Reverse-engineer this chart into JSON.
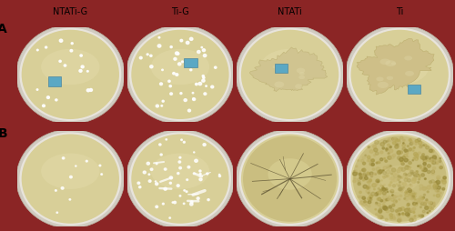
{
  "col_labels": [
    "NTATi-G",
    "Ti-G",
    "NTATi",
    "Ti"
  ],
  "row_labels": [
    "A",
    "B"
  ],
  "background_color": "#8B2525",
  "figsize": [
    5.0,
    2.55
  ],
  "dpi": 100,
  "title_fontsize": 7.0,
  "label_fontsize": 10,
  "plate_rim_color": "#D8D0C0",
  "plate_rim_outer": "#C0B8A8",
  "plate_shadow_color": "#BEB080",
  "agar_color": "#D8CF98",
  "agar_color_light": "#E8E0B0",
  "implant_color": "#5BA8C4",
  "implant_edge": "#3A7A9A",
  "colony_color": "#F0EDD8",
  "biofilm_color": "#C8BC88",
  "biofilm_edge": "#B0A870"
}
